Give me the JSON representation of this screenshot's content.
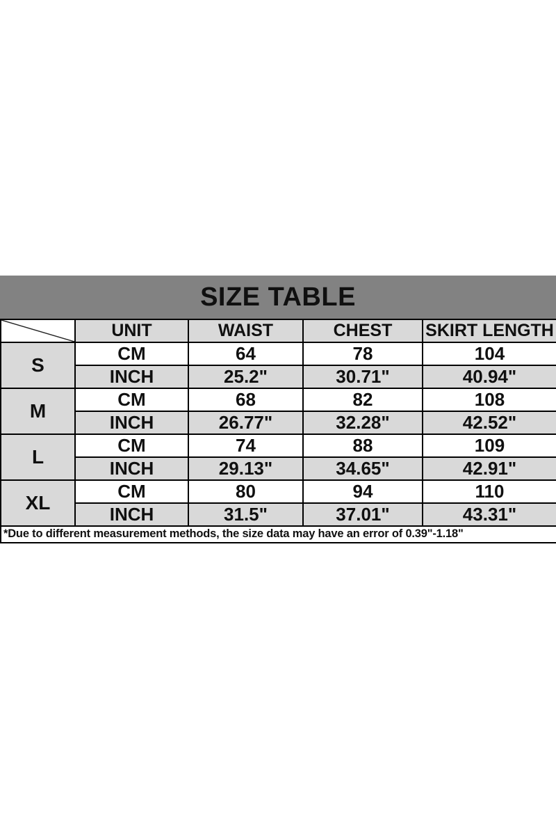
{
  "page": {
    "background": "#ffffff"
  },
  "chart_data": {
    "type": "table",
    "title": "SIZE TABLE",
    "columns": [
      "UNIT",
      "WAIST",
      "CHEST",
      "SKIRT LENGTH"
    ],
    "unit_row_labels": [
      "CM",
      "INCH"
    ],
    "size_groups": [
      {
        "size": "S",
        "rows": [
          {
            "unit": "CM",
            "values": [
              "64",
              "78",
              "104"
            ]
          },
          {
            "unit": "INCH",
            "values": [
              "25.2\"",
              "30.71\"",
              "40.94\""
            ]
          }
        ]
      },
      {
        "size": "M",
        "rows": [
          {
            "unit": "CM",
            "values": [
              "68",
              "82",
              "108"
            ]
          },
          {
            "unit": "INCH",
            "values": [
              "26.77\"",
              "32.28\"",
              "42.52\""
            ]
          }
        ]
      },
      {
        "size": "L",
        "rows": [
          {
            "unit": "CM",
            "values": [
              "74",
              "88",
              "109"
            ]
          },
          {
            "unit": "INCH",
            "values": [
              "29.13\"",
              "34.65\"",
              "42.91\""
            ]
          }
        ]
      },
      {
        "size": "XL",
        "rows": [
          {
            "unit": "CM",
            "values": [
              "80",
              "94",
              "110"
            ]
          },
          {
            "unit": "INCH",
            "values": [
              "31.5\"",
              "37.01\"",
              "43.31\""
            ]
          }
        ]
      }
    ],
    "footnote": "*Due to different measurement methods, the size data may have an error of 0.39\"-1.18\""
  },
  "colors": {
    "banner_bg": "#828282",
    "header_bg": "#d9d9d9",
    "shade_bg": "#d9d9d9",
    "cell_bg": "#ffffff",
    "border": "#000000",
    "text": "#101010"
  }
}
